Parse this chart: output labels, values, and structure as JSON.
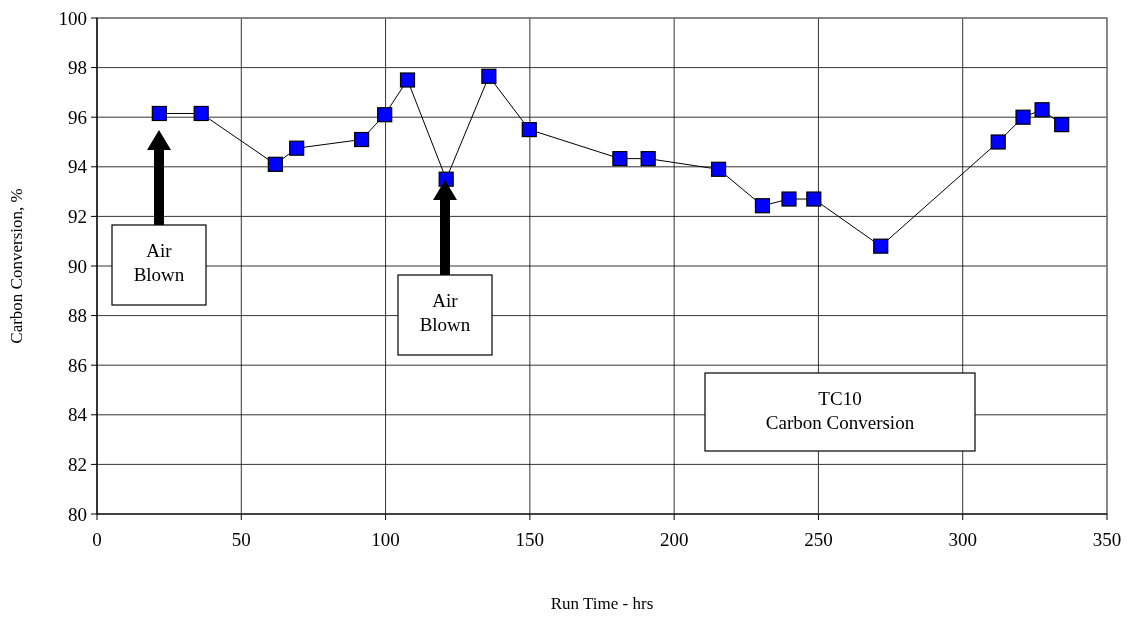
{
  "chart_data": {
    "type": "line",
    "xlabel": "Run Time - hrs",
    "ylabel": "Carbon Conversion, %",
    "x": [
      21.6,
      36.1,
      61.8,
      69.2,
      91.7,
      99.7,
      107.6,
      121.0,
      135.8,
      149.8,
      181.2,
      191.0,
      215.4,
      230.6,
      239.8,
      248.4,
      271.6,
      312.3,
      320.9,
      327.5,
      334.3
    ],
    "series": [
      {
        "color": "#0000ff",
        "values": [
          96.15,
          96.15,
          94.1,
          94.75,
          95.1,
          96.1,
          97.5,
          93.5,
          97.65,
          95.5,
          94.33,
          94.33,
          93.9,
          92.43,
          92.7,
          92.7,
          90.8,
          95.0,
          96.0,
          96.3,
          95.7
        ]
      }
    ],
    "xlim": [
      0,
      350
    ],
    "xticks": [
      0,
      50,
      100,
      150,
      200,
      250,
      300,
      350
    ],
    "ylim": [
      80,
      100
    ],
    "yticks": [
      80,
      82,
      84,
      86,
      88,
      90,
      92,
      94,
      96,
      98,
      100
    ],
    "grid": true,
    "marker": "square",
    "line_style": "solid",
    "annotations": [
      "Air\nBlown",
      "Air\nBlown",
      "TC10\nCarbon Conversion"
    ]
  }
}
